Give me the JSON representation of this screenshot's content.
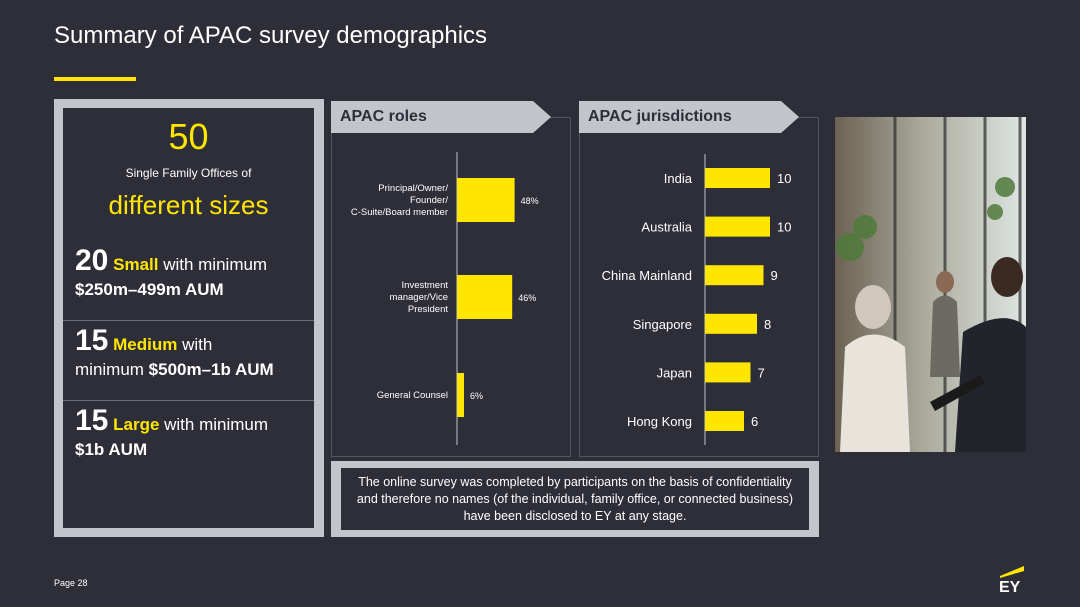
{
  "title": "Summary of APAC survey demographics",
  "summary": {
    "total_number": "50",
    "total_label": "Single Family Offices of",
    "total_highlight": "different sizes",
    "segments": [
      {
        "count": "20",
        "size": "Small",
        "text1": " with minimum",
        "text2": "$250m–499m AUM"
      },
      {
        "count": "15",
        "size": "Medium",
        "text1": " with",
        "text2_prefix": "minimum ",
        "text2": "$500m–1b AUM"
      },
      {
        "count": "15",
        "size": "Large",
        "text1": " with minimum",
        "text2": "$1b AUM"
      }
    ]
  },
  "roles_panel": {
    "header": "APAC roles",
    "chart_data": {
      "type": "bar",
      "orientation": "horizontal",
      "categories_lines": [
        [
          "Principal/Owner/",
          "Founder/",
          "C-Suite/Board member"
        ],
        [
          "Investment",
          "manager/Vice",
          "President"
        ],
        [
          "General Counsel"
        ]
      ],
      "categories": [
        "Principal/Owner/Founder/C-Suite/Board member",
        "Investment manager/Vice President",
        "General Counsel"
      ],
      "values": [
        48,
        46,
        6
      ],
      "value_labels": [
        "48%",
        "46%",
        "6%"
      ],
      "unit": "%",
      "bar_color": "#ffe600",
      "xlim": [
        0,
        100
      ]
    }
  },
  "jurisdictions_panel": {
    "header": "APAC jurisdictions",
    "chart_data": {
      "type": "bar",
      "orientation": "horizontal",
      "categories": [
        "India",
        "Australia",
        "China Mainland",
        "Singapore",
        "Japan",
        "Hong Kong"
      ],
      "values": [
        10,
        10,
        9,
        8,
        7,
        6
      ],
      "value_labels": [
        "10",
        "10",
        "9",
        "8",
        "7",
        "6"
      ],
      "bar_color": "#ffe600",
      "xlim": [
        0,
        10
      ]
    }
  },
  "note": "The online survey was completed by participants on the basis of confidentiality and therefore no names (of the individual, family office, or connected business) have been disclosed to  EY at any stage.",
  "footer": {
    "page_label": "Page 28",
    "logo_text": "EY"
  },
  "colors": {
    "background": "#2e2e38",
    "accent": "#ffe600",
    "frame": "#c4c4cd"
  },
  "photo": {
    "icon": "business-meeting-photo"
  }
}
